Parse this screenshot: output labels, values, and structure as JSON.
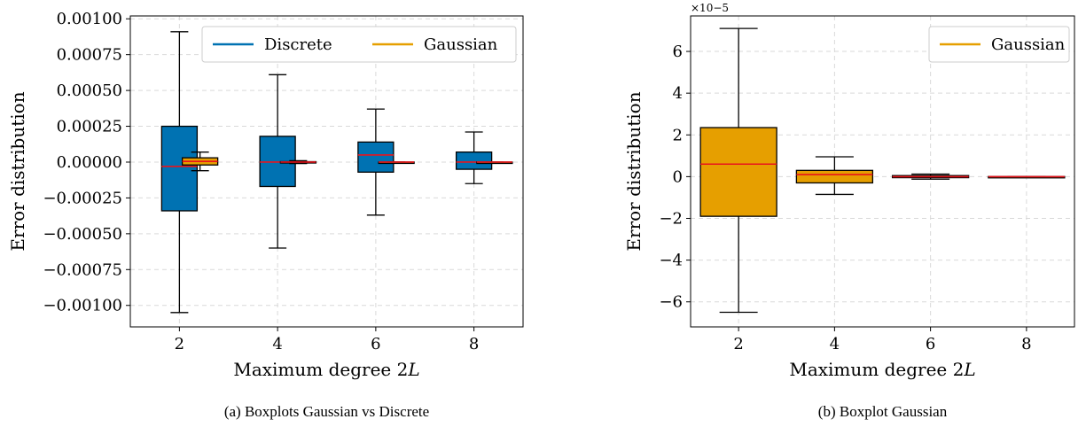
{
  "colors": {
    "discrete": "#0072B2",
    "gaussian": "#E69F00",
    "median": "#E8141C",
    "grid": "#d9d9d9"
  },
  "chart_data": [
    {
      "type": "box",
      "caption": "(a) Boxplots Gaussian vs Discrete",
      "xlabel": "Maximum degree 2L",
      "ylabel": "Error distribution",
      "categories": [
        "2",
        "4",
        "6",
        "8"
      ],
      "ylim": [
        -0.00115,
        0.00102
      ],
      "yticks": [
        "0.00100",
        "0.00075",
        "0.00050",
        "0.00025",
        "0.00000",
        "−0.00025",
        "−0.00050",
        "−0.00075",
        "−0.00100"
      ],
      "ytick_values": [
        0.001,
        0.00075,
        0.0005,
        0.00025,
        0.0,
        -0.00025,
        -0.0005,
        -0.00075,
        -0.001
      ],
      "grid": true,
      "legend": {
        "position": "top-right",
        "entries": [
          "Discrete",
          "Gaussian"
        ]
      },
      "series": [
        {
          "name": "Discrete",
          "color_key": "discrete",
          "boxes": [
            {
              "whislo": -0.00105,
              "q1": -0.00034,
              "med": -3e-05,
              "q3": 0.00025,
              "whishi": 0.00091
            },
            {
              "whislo": -0.0006,
              "q1": -0.00017,
              "med": 0.0,
              "q3": 0.00018,
              "whishi": 0.00061
            },
            {
              "whislo": -0.00037,
              "q1": -7e-05,
              "med": 5e-05,
              "q3": 0.00014,
              "whishi": 0.00037
            },
            {
              "whislo": -0.00015,
              "q1": -5e-05,
              "med": 0.0,
              "q3": 7e-05,
              "whishi": 0.00021
            }
          ]
        },
        {
          "name": "Gaussian",
          "color_key": "gaussian",
          "boxes": [
            {
              "whislo": -6e-05,
              "q1": -2e-05,
              "med": 5e-06,
              "q3": 3e-05,
              "whishi": 7e-05
            },
            {
              "whislo": -1e-05,
              "q1": -3e-06,
              "med": 0.0,
              "q3": 3e-06,
              "whishi": 1e-05
            },
            {
              "whislo": -1e-06,
              "q1": -3e-07,
              "med": 0.0,
              "q3": 3e-07,
              "whishi": 1e-06
            },
            {
              "whislo": -1e-07,
              "q1": -3e-08,
              "med": 0.0,
              "q3": 3e-08,
              "whishi": 1e-07
            }
          ]
        }
      ]
    },
    {
      "type": "box",
      "caption": "(b) Boxplot Gaussian",
      "xlabel": "Maximum degree 2L",
      "ylabel": "Error distribution",
      "y_multiplier": "×10−5",
      "categories": [
        "2",
        "4",
        "6",
        "8"
      ],
      "ylim": [
        -7.2,
        7.7
      ],
      "yticks": [
        "6",
        "4",
        "2",
        "0",
        "−2",
        "−4",
        "−6"
      ],
      "ytick_values": [
        6,
        4,
        2,
        0,
        -2,
        -4,
        -6
      ],
      "grid": true,
      "legend": {
        "position": "top-right",
        "entries": [
          "Gaussian"
        ]
      },
      "series": [
        {
          "name": "Gaussian",
          "color_key": "gaussian",
          "boxes": [
            {
              "whislo": -6.5,
              "q1": -1.9,
              "med": 0.6,
              "q3": 2.35,
              "whishi": 7.1
            },
            {
              "whislo": -0.85,
              "q1": -0.3,
              "med": 0.1,
              "q3": 0.3,
              "whishi": 0.95
            },
            {
              "whislo": -0.12,
              "q1": -0.05,
              "med": 0.0,
              "q3": 0.05,
              "whishi": 0.12
            },
            {
              "whislo": -0.01,
              "q1": -0.005,
              "med": 0.0,
              "q3": 0.005,
              "whishi": 0.01
            }
          ]
        }
      ]
    }
  ]
}
